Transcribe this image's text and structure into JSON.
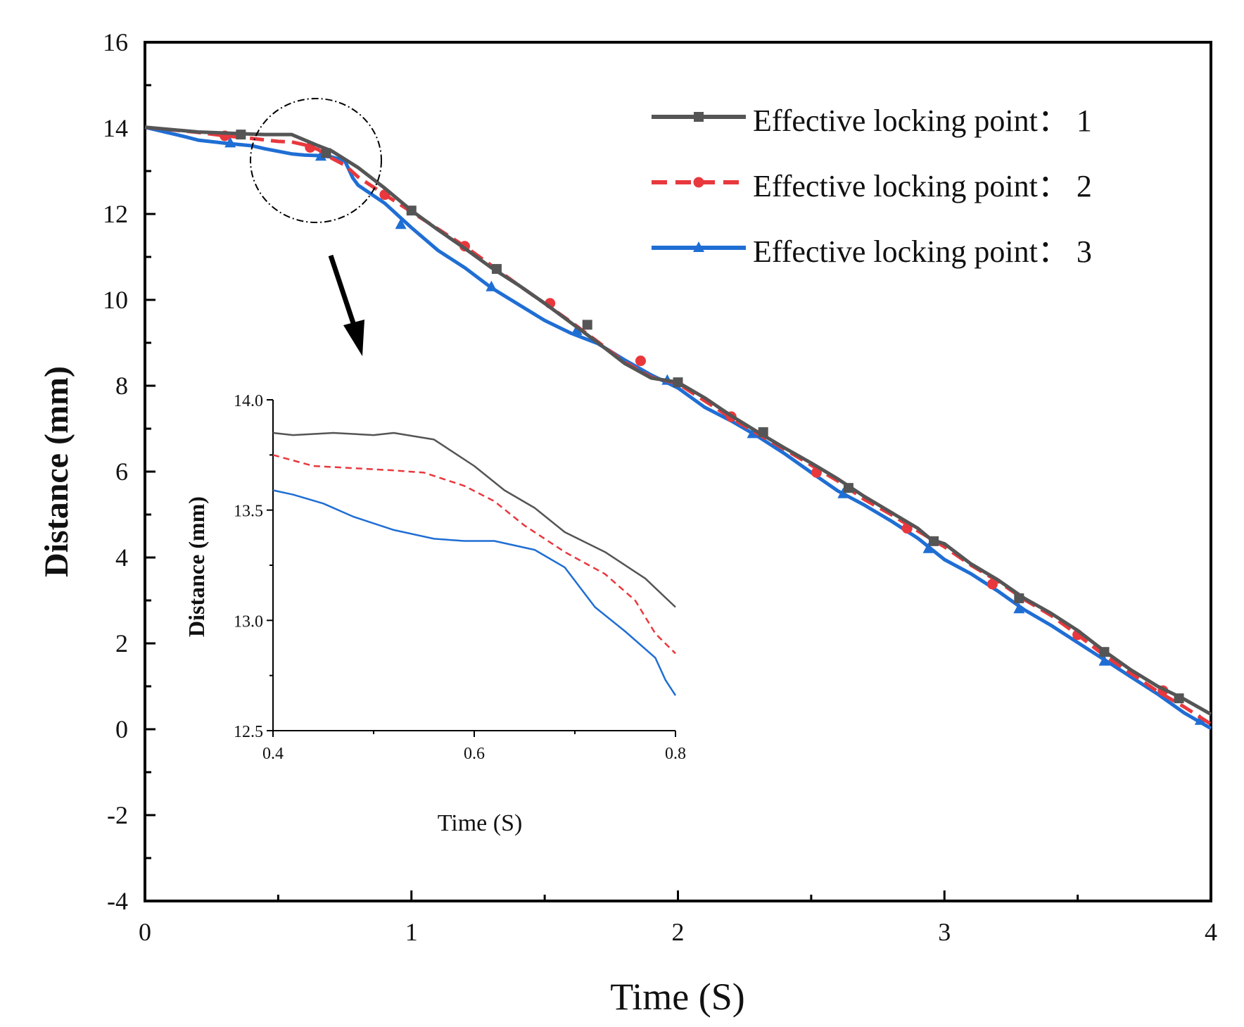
{
  "chart_data": [
    {
      "type": "line",
      "title": "",
      "xlabel": "Time (S)",
      "ylabel": "Distance (mm)",
      "xlim": [
        0,
        4
      ],
      "ylim": [
        -4,
        16
      ],
      "xticks": [
        "0",
        "1",
        "2",
        "3",
        "4"
      ],
      "yticks": [
        "-4",
        "-2",
        "0",
        "2",
        "4",
        "6",
        "8",
        "10",
        "12",
        "14",
        "16"
      ],
      "legend_position": "top-right",
      "series": [
        {
          "name": "Effective locking point： 1",
          "color": "#555555",
          "dash": "solid",
          "marker": "square",
          "x": [
            0,
            0.2,
            0.4,
            0.45,
            0.5,
            0.55,
            0.6,
            0.65,
            0.7,
            0.8,
            0.9,
            1.0,
            1.1,
            1.2,
            1.3,
            1.4,
            1.5,
            1.6,
            1.7,
            1.8,
            1.9,
            2.0,
            2.1,
            2.2,
            2.3,
            2.4,
            2.5,
            2.6,
            2.7,
            2.8,
            2.9,
            2.95,
            3.0,
            3.1,
            3.2,
            3.3,
            3.4,
            3.5,
            3.6,
            3.7,
            3.8,
            3.9,
            4.0
          ],
          "values": [
            14.02,
            13.91,
            13.86,
            13.85,
            13.85,
            13.85,
            13.72,
            13.59,
            13.47,
            13.08,
            12.6,
            12.08,
            11.63,
            11.2,
            10.75,
            10.35,
            9.92,
            9.46,
            9.0,
            8.52,
            8.18,
            8.08,
            7.72,
            7.3,
            6.92,
            6.55,
            6.2,
            5.83,
            5.42,
            5.05,
            4.68,
            4.42,
            4.32,
            3.85,
            3.48,
            3.05,
            2.7,
            2.3,
            1.82,
            1.38,
            1.0,
            0.7,
            0.35
          ],
          "marker_x": [
            0.36,
            0.68,
            1.0,
            1.32,
            1.66,
            2.0,
            2.32,
            2.64,
            2.96,
            3.28,
            3.6,
            3.88
          ],
          "marker_y": [
            13.85,
            13.42,
            12.08,
            10.72,
            9.42,
            8.08,
            6.92,
            5.62,
            4.38,
            3.05,
            1.8,
            0.72
          ]
        },
        {
          "name": "Effective locking point： 2",
          "color": "#e8383d",
          "dash": "dashed",
          "marker": "circle",
          "x": [
            0,
            0.2,
            0.3,
            0.4,
            0.5,
            0.55,
            0.6,
            0.65,
            0.7,
            0.75,
            0.8,
            0.9,
            1.0,
            1.1,
            1.2,
            1.3,
            1.4,
            1.5,
            1.6,
            1.7,
            1.8,
            1.9,
            2.0,
            2.1,
            2.2,
            2.3,
            2.4,
            2.5,
            2.6,
            2.7,
            2.8,
            2.9,
            3.0,
            3.1,
            3.2,
            3.3,
            3.4,
            3.5,
            3.6,
            3.7,
            3.8,
            3.9,
            4.0
          ],
          "values": [
            14.02,
            13.9,
            13.82,
            13.76,
            13.69,
            13.68,
            13.61,
            13.5,
            13.3,
            13.14,
            12.86,
            12.45,
            12.05,
            11.65,
            11.25,
            10.8,
            10.35,
            9.92,
            9.48,
            9.02,
            8.55,
            8.2,
            8.05,
            7.65,
            7.25,
            6.88,
            6.52,
            6.15,
            5.78,
            5.35,
            5.0,
            4.62,
            4.25,
            3.82,
            3.45,
            3.02,
            2.65,
            2.2,
            1.72,
            1.3,
            0.88,
            0.52,
            0.12
          ],
          "marker_x": [
            0.3,
            0.62,
            0.9,
            1.2,
            1.52,
            1.86,
            2.2,
            2.52,
            2.86,
            3.18,
            3.5,
            3.82
          ],
          "marker_y": [
            13.82,
            13.55,
            12.45,
            11.25,
            9.92,
            8.58,
            7.28,
            5.98,
            4.68,
            3.38,
            2.2,
            0.9
          ]
        },
        {
          "name": "Effective locking point： 3",
          "color": "#1f6ed4",
          "dash": "solid",
          "marker": "triangle",
          "x": [
            0,
            0.15,
            0.2,
            0.3,
            0.4,
            0.45,
            0.5,
            0.55,
            0.6,
            0.65,
            0.7,
            0.75,
            0.78,
            0.8,
            0.9,
            1.0,
            1.1,
            1.2,
            1.3,
            1.4,
            1.5,
            1.6,
            1.7,
            1.8,
            1.9,
            2.0,
            2.1,
            2.2,
            2.3,
            2.4,
            2.5,
            2.6,
            2.7,
            2.8,
            2.9,
            3.0,
            3.1,
            3.2,
            3.3,
            3.4,
            3.5,
            3.6,
            3.7,
            3.8,
            3.9,
            4.0
          ],
          "values": [
            14.02,
            13.8,
            13.72,
            13.65,
            13.59,
            13.52,
            13.46,
            13.4,
            13.37,
            13.36,
            13.33,
            13.24,
            12.84,
            12.67,
            12.25,
            11.68,
            11.15,
            10.75,
            10.28,
            9.9,
            9.52,
            9.22,
            8.98,
            8.6,
            8.25,
            7.95,
            7.5,
            7.18,
            6.82,
            6.42,
            5.98,
            5.55,
            5.22,
            4.85,
            4.45,
            3.95,
            3.62,
            3.22,
            2.78,
            2.42,
            2.02,
            1.62,
            1.22,
            0.82,
            0.38,
            0.02
          ],
          "marker_x": [
            0.32,
            0.66,
            0.96,
            1.3,
            1.62,
            1.96,
            2.28,
            2.62,
            2.94,
            3.28,
            3.6,
            3.96
          ],
          "marker_y": [
            13.65,
            13.34,
            11.75,
            10.3,
            9.28,
            8.12,
            6.88,
            5.48,
            4.2,
            2.8,
            1.58,
            0.2
          ]
        }
      ]
    },
    {
      "type": "line",
      "title": "",
      "xlabel": "Time (S)",
      "ylabel": "Distance (mm)",
      "xlim": [
        0.4,
        0.8
      ],
      "ylim": [
        12.5,
        14.0
      ],
      "xticks": [
        "0.4",
        "0.6",
        "0.8"
      ],
      "yticks": [
        "12.5",
        "13.0",
        "13.5",
        "14.0"
      ],
      "series": [
        {
          "name": "Effective locking point： 1",
          "color": "#555555",
          "dash": "solid",
          "x": [
            0.4,
            0.42,
            0.46,
            0.5,
            0.52,
            0.56,
            0.6,
            0.63,
            0.66,
            0.69,
            0.73,
            0.77,
            0.8
          ],
          "values": [
            13.85,
            13.84,
            13.85,
            13.84,
            13.85,
            13.82,
            13.7,
            13.59,
            13.51,
            13.4,
            13.31,
            13.19,
            13.06
          ]
        },
        {
          "name": "Effective locking point： 2",
          "color": "#e8383d",
          "dash": "dashed",
          "x": [
            0.4,
            0.44,
            0.48,
            0.52,
            0.55,
            0.59,
            0.62,
            0.65,
            0.69,
            0.73,
            0.76,
            0.78,
            0.8
          ],
          "values": [
            13.75,
            13.7,
            13.69,
            13.68,
            13.67,
            13.61,
            13.54,
            13.43,
            13.31,
            13.21,
            13.09,
            12.94,
            12.85
          ]
        },
        {
          "name": "Effective locking point： 3",
          "color": "#1f6ed4",
          "dash": "solid",
          "x": [
            0.4,
            0.42,
            0.45,
            0.48,
            0.52,
            0.56,
            0.59,
            0.62,
            0.66,
            0.69,
            0.72,
            0.75,
            0.78,
            0.79,
            0.8
          ],
          "values": [
            13.59,
            13.57,
            13.53,
            13.47,
            13.41,
            13.37,
            13.36,
            13.36,
            13.32,
            13.24,
            13.06,
            12.95,
            12.83,
            12.73,
            12.66
          ]
        }
      ]
    }
  ]
}
